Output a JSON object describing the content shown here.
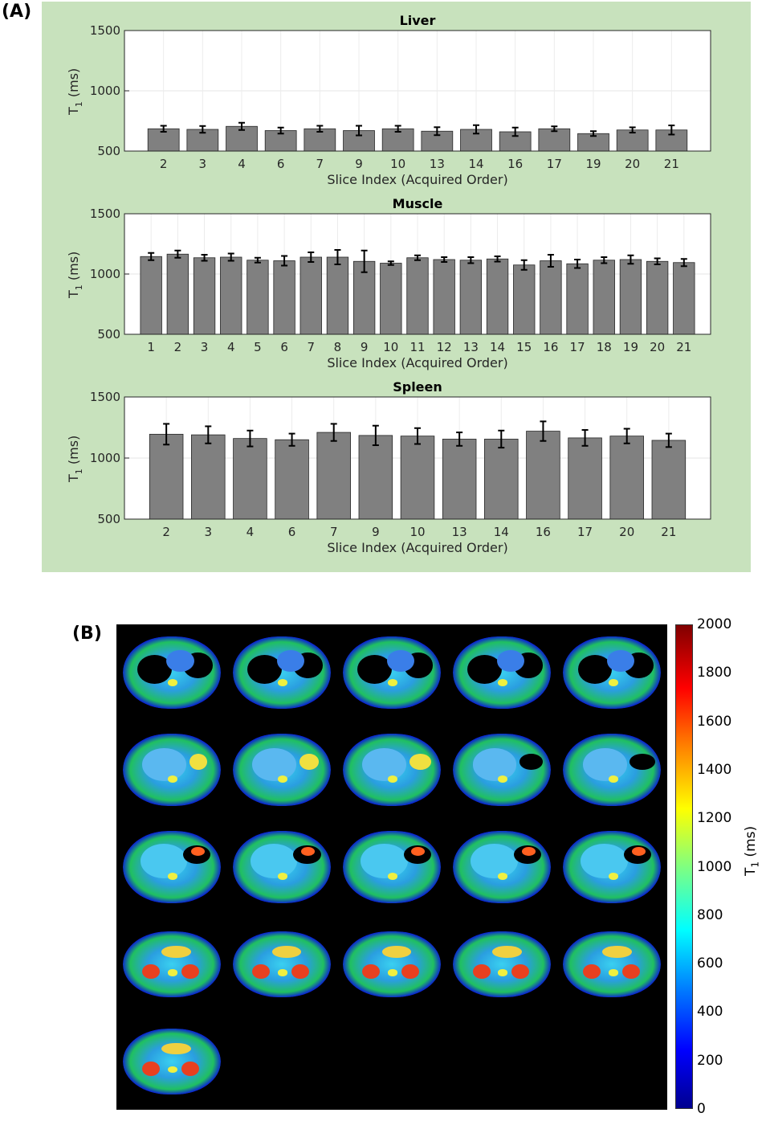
{
  "panel_labels": {
    "a": "(A)",
    "b": "(B)"
  },
  "colors": {
    "panel_bg": "#c8e2bd",
    "bar": "#808080"
  },
  "chart_data": [
    {
      "type": "bar",
      "title": "Liver",
      "xlabel": "Slice Index (Acquired Order)",
      "ylabel_main": "T",
      "ylabel_sub": "1",
      "ylabel_unit": " (ms)",
      "ylim": [
        500,
        1500
      ],
      "yticks": [
        500,
        1000,
        1500
      ],
      "categories": [
        "2",
        "3",
        "4",
        "6",
        "7",
        "9",
        "10",
        "13",
        "14",
        "16",
        "17",
        "19",
        "20",
        "21"
      ],
      "values": [
        685,
        680,
        705,
        670,
        685,
        670,
        685,
        665,
        680,
        660,
        685,
        645,
        675,
        675
      ],
      "errors": [
        25,
        28,
        30,
        25,
        25,
        40,
        25,
        33,
        35,
        35,
        20,
        20,
        22,
        38
      ]
    },
    {
      "type": "bar",
      "title": "Muscle",
      "xlabel": "Slice Index (Acquired Order)",
      "ylabel_main": "T",
      "ylabel_sub": "1",
      "ylabel_unit": " (ms)",
      "ylim": [
        500,
        1500
      ],
      "yticks": [
        500,
        1000,
        1500
      ],
      "categories": [
        "1",
        "2",
        "3",
        "4",
        "5",
        "6",
        "7",
        "8",
        "9",
        "10",
        "11",
        "12",
        "13",
        "14",
        "15",
        "16",
        "17",
        "18",
        "19",
        "20",
        "21"
      ],
      "values": [
        1145,
        1165,
        1135,
        1140,
        1115,
        1110,
        1140,
        1140,
        1105,
        1090,
        1135,
        1120,
        1115,
        1125,
        1075,
        1110,
        1085,
        1115,
        1120,
        1105,
        1095
      ],
      "errors": [
        30,
        30,
        25,
        30,
        20,
        40,
        40,
        60,
        90,
        15,
        20,
        20,
        25,
        22,
        40,
        50,
        35,
        25,
        35,
        25,
        30
      ]
    },
    {
      "type": "bar",
      "title": "Spleen",
      "xlabel": "Slice Index (Acquired Order)",
      "ylabel_main": "T",
      "ylabel_sub": "1",
      "ylabel_unit": " (ms)",
      "ylim": [
        500,
        1500
      ],
      "yticks": [
        500,
        1000,
        1500
      ],
      "categories": [
        "2",
        "3",
        "4",
        "6",
        "7",
        "9",
        "10",
        "13",
        "14",
        "16",
        "17",
        "20",
        "21"
      ],
      "values": [
        1195,
        1190,
        1160,
        1150,
        1210,
        1185,
        1180,
        1155,
        1155,
        1220,
        1165,
        1180,
        1145
      ],
      "errors": [
        85,
        70,
        65,
        50,
        70,
        80,
        65,
        55,
        70,
        80,
        65,
        60,
        55
      ]
    }
  ],
  "colorbar": {
    "ticks": [
      "2000",
      "1800",
      "1600",
      "1400",
      "1200",
      "1000",
      "800",
      "600",
      "400",
      "200",
      "0"
    ],
    "label_main": "T",
    "label_sub": "1",
    "label_unit": " (ms)",
    "min": 0,
    "max": 2000
  },
  "mri_slices": {
    "count": 21,
    "columns": 5
  }
}
